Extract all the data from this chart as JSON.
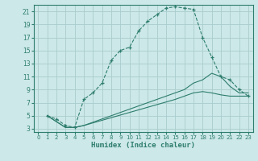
{
  "xlabel": "Humidex (Indice chaleur)",
  "bg_color": "#cce8e8",
  "grid_color": "#aacccc",
  "line_color": "#2e7d6e",
  "xlim": [
    -0.5,
    23.5
  ],
  "ylim": [
    2.5,
    22
  ],
  "xticks": [
    0,
    1,
    2,
    3,
    4,
    5,
    6,
    7,
    8,
    9,
    10,
    11,
    12,
    13,
    14,
    15,
    16,
    17,
    18,
    19,
    20,
    21,
    22,
    23
  ],
  "yticks": [
    3,
    5,
    7,
    9,
    11,
    13,
    15,
    17,
    19,
    21
  ],
  "curve1_x": [
    1,
    2,
    3,
    4,
    5,
    6,
    7,
    8,
    9,
    10,
    11,
    12,
    13,
    14,
    15,
    16,
    17,
    18,
    19,
    20,
    21,
    22,
    23
  ],
  "curve1_y": [
    5,
    4.5,
    3.5,
    3.2,
    7.5,
    8.5,
    10,
    13.5,
    15,
    15.5,
    18,
    19.5,
    20.5,
    21.5,
    21.7,
    21.5,
    21.3,
    17,
    14,
    11,
    10.5,
    9,
    8
  ],
  "curve2_x": [
    1,
    3,
    4,
    5,
    10,
    15,
    16,
    17,
    18,
    19,
    20,
    21,
    22,
    23
  ],
  "curve2_y": [
    5,
    3.2,
    3.2,
    3.5,
    6,
    8.5,
    9,
    10,
    10.5,
    11.5,
    11,
    9.5,
    8.5,
    8.5
  ],
  "curve3_x": [
    1,
    3,
    4,
    5,
    10,
    15,
    16,
    17,
    18,
    19,
    20,
    21,
    22,
    23
  ],
  "curve3_y": [
    5,
    3.2,
    3.2,
    3.5,
    5.5,
    7.5,
    8,
    8.5,
    8.7,
    8.5,
    8.2,
    8,
    8,
    8
  ]
}
